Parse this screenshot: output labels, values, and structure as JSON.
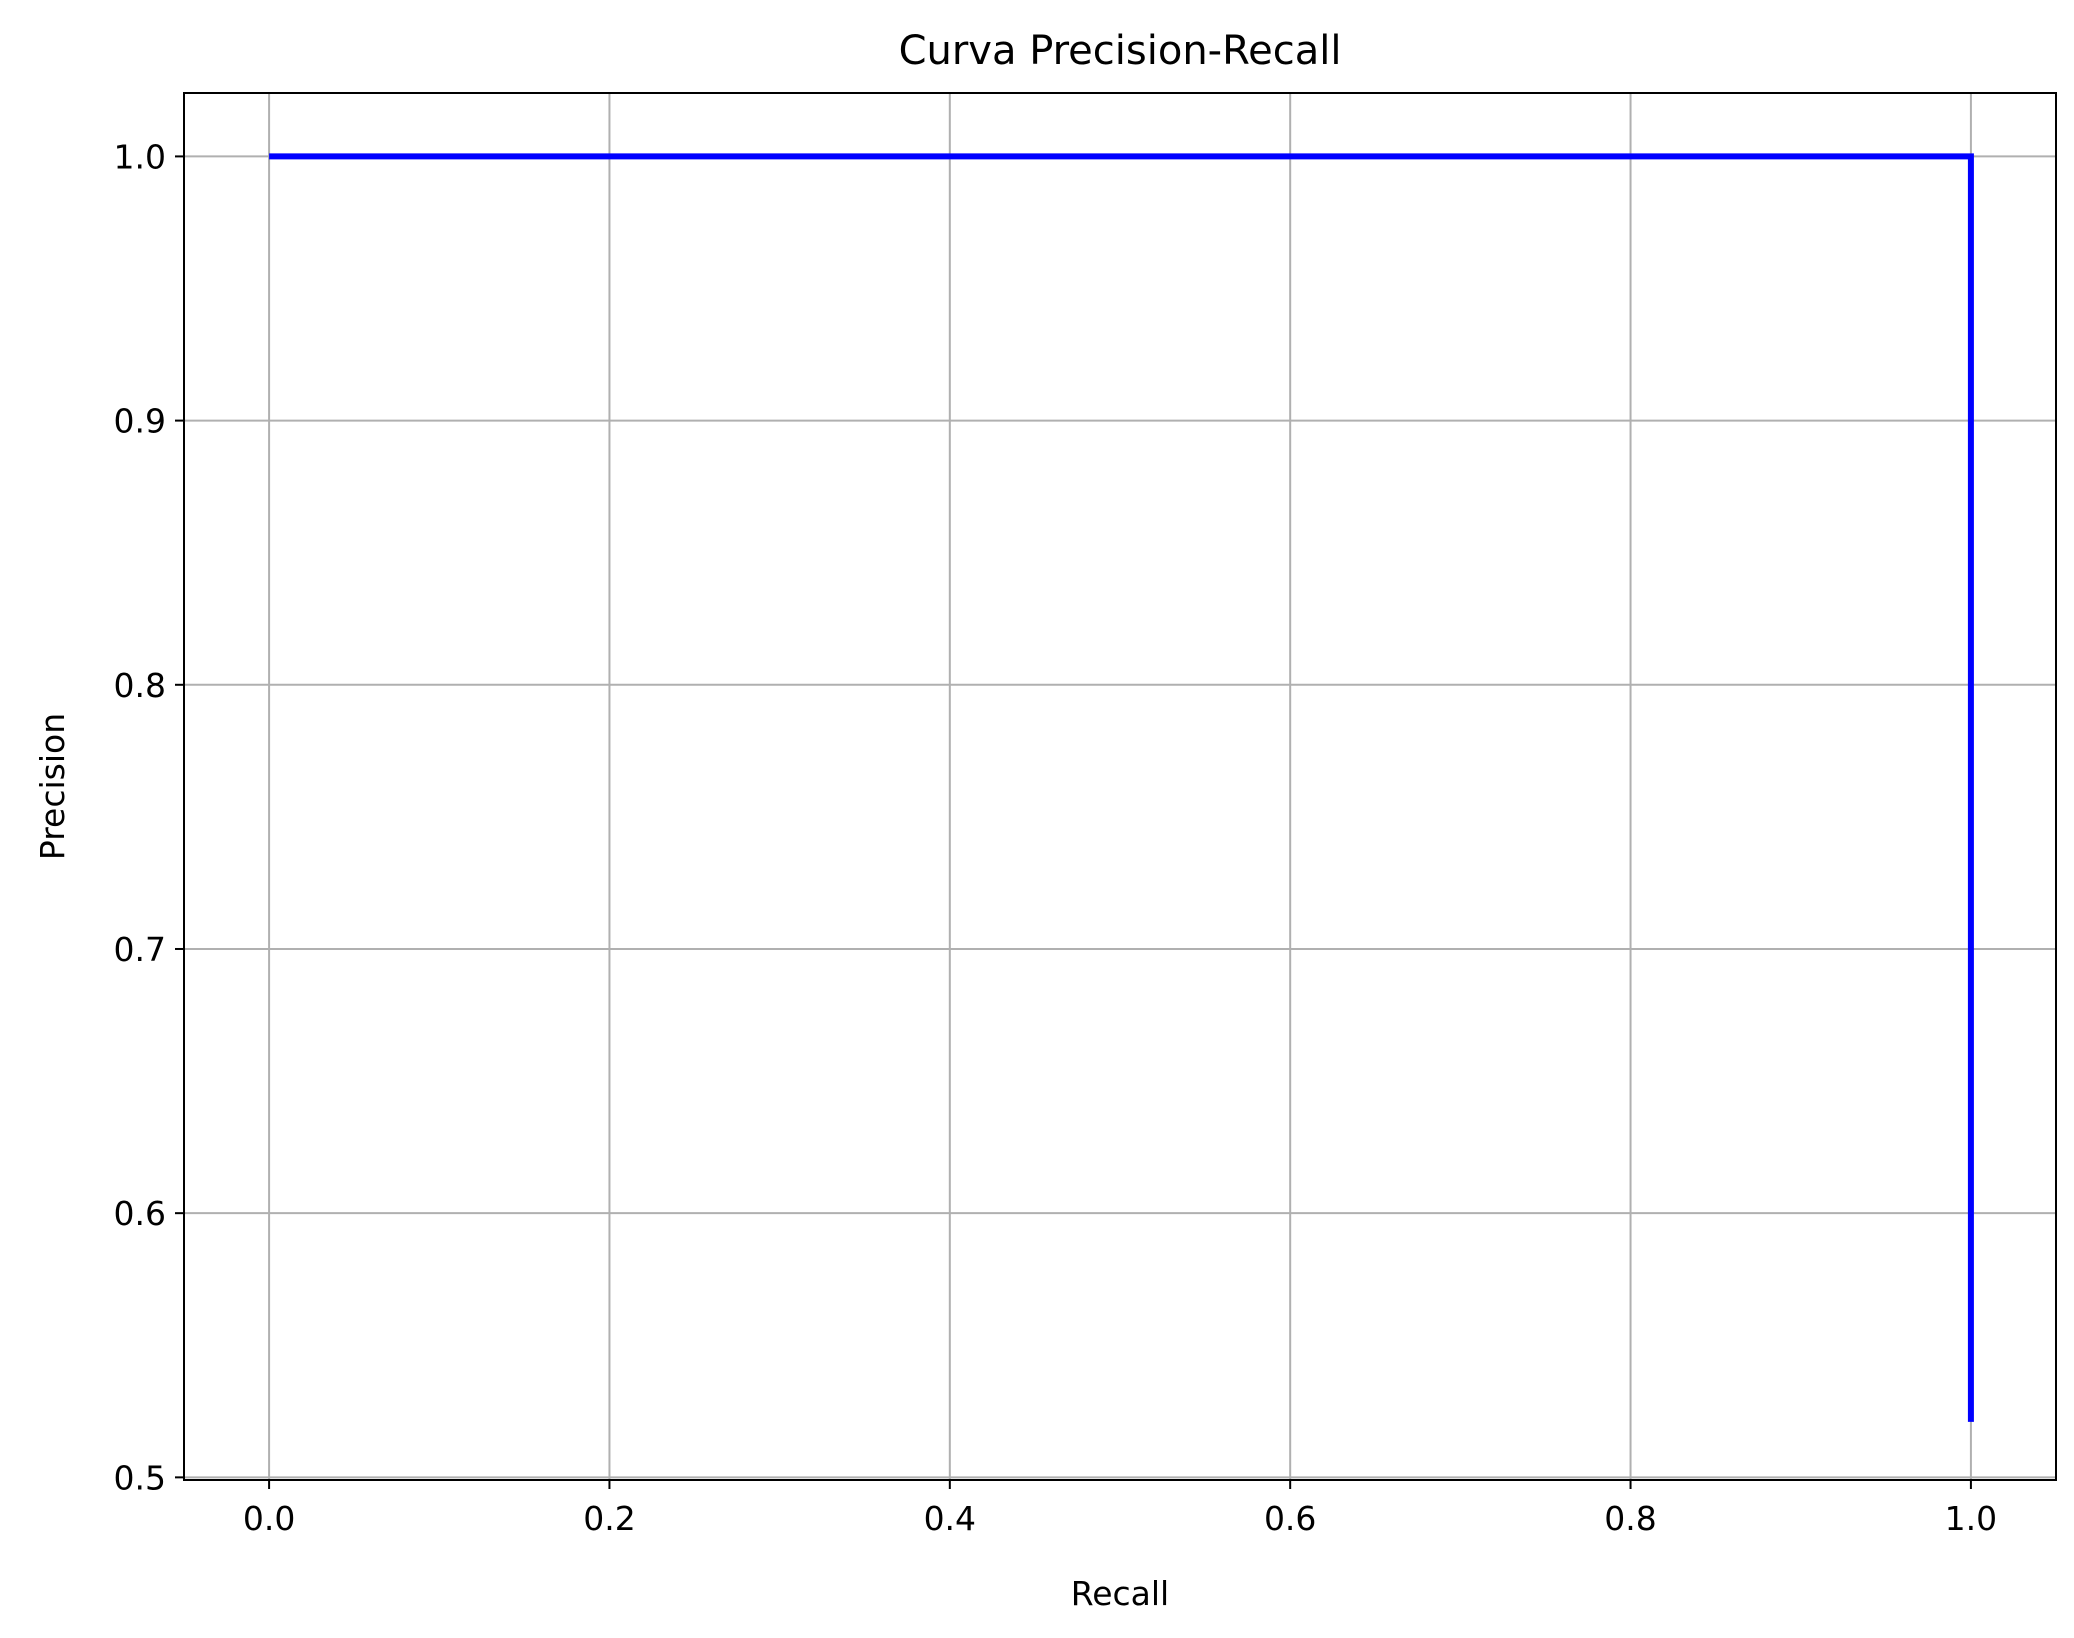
{
  "chart_data": {
    "type": "line",
    "title": "Curva Precision-Recall",
    "xlabel": "Recall",
    "ylabel": "Precision",
    "xlim": [
      -0.05,
      1.05
    ],
    "ylim": [
      0.499,
      1.024
    ],
    "xticks": [
      0.0,
      0.2,
      0.4,
      0.6,
      0.8,
      1.0
    ],
    "xtick_labels": [
      "0.0",
      "0.2",
      "0.4",
      "0.6",
      "0.8",
      "1.0"
    ],
    "yticks": [
      0.5,
      0.6,
      0.7,
      0.8,
      0.9,
      1.0
    ],
    "ytick_labels": [
      "0.5",
      "0.6",
      "0.7",
      "0.8",
      "0.9",
      "1.0"
    ],
    "grid": true,
    "series": [
      {
        "x": [
          0.0,
          1.0,
          1.0
        ],
        "y": [
          1.0,
          1.0,
          0.521
        ],
        "color": "#0000ff"
      }
    ]
  }
}
